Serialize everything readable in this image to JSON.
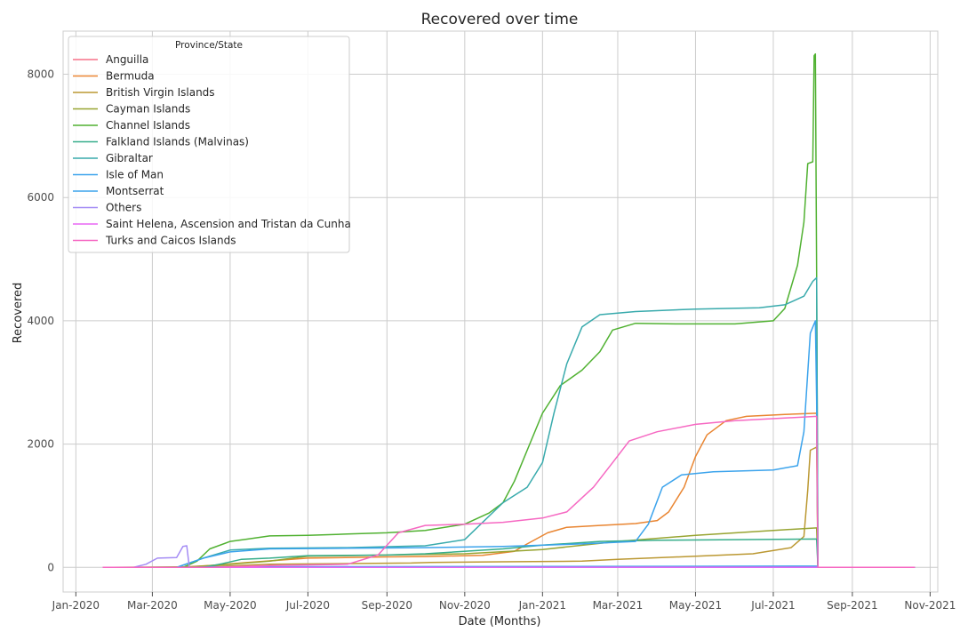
{
  "chart_data": {
    "type": "line",
    "title": "Recovered over time",
    "xlabel": "Date (Months)",
    "ylabel": "Recovered",
    "x_ticks": [
      "Jan-2020",
      "Mar-2020",
      "May-2020",
      "Jul-2020",
      "Sep-2020",
      "Nov-2020",
      "Jan-2021",
      "Mar-2021",
      "May-2021",
      "Jul-2021",
      "Sep-2021",
      "Nov-2021"
    ],
    "y_ticks": [
      0,
      2000,
      4000,
      6000,
      8000
    ],
    "xlim": [
      "2019-12-22",
      "2021-11-07"
    ],
    "ylim": [
      -400,
      8700
    ],
    "grid": true,
    "legend": {
      "title": "Province/State",
      "position": "top-left"
    },
    "series": [
      {
        "name": "Anguilla",
        "color": "#f77189",
        "points": [
          [
            "2020-01-22",
            0
          ],
          [
            "2021-08-04",
            3
          ],
          [
            "2021-08-05",
            0
          ],
          [
            "2021-10-20",
            0
          ]
        ]
      },
      {
        "name": "Bermuda",
        "color": "#e98531",
        "points": [
          [
            "2020-01-22",
            0
          ],
          [
            "2020-03-20",
            0
          ],
          [
            "2020-04-15",
            30
          ],
          [
            "2020-05-15",
            80
          ],
          [
            "2020-07-01",
            150
          ],
          [
            "2020-09-01",
            170
          ],
          [
            "2020-10-01",
            175
          ],
          [
            "2020-11-15",
            195
          ],
          [
            "2020-12-10",
            260
          ],
          [
            "2020-12-20",
            380
          ],
          [
            "2021-01-05",
            560
          ],
          [
            "2021-01-20",
            650
          ],
          [
            "2021-02-15",
            680
          ],
          [
            "2021-03-15",
            710
          ],
          [
            "2021-04-01",
            760
          ],
          [
            "2021-04-10",
            900
          ],
          [
            "2021-04-22",
            1300
          ],
          [
            "2021-05-01",
            1800
          ],
          [
            "2021-05-10",
            2150
          ],
          [
            "2021-05-25",
            2380
          ],
          [
            "2021-06-10",
            2450
          ],
          [
            "2021-07-10",
            2480
          ],
          [
            "2021-08-04",
            2500
          ],
          [
            "2021-08-05",
            0
          ],
          [
            "2021-10-20",
            0
          ]
        ]
      },
      {
        "name": "British Virgin Islands",
        "color": "#bb9832",
        "points": [
          [
            "2020-01-22",
            0
          ],
          [
            "2020-04-01",
            0
          ],
          [
            "2020-06-01",
            50
          ],
          [
            "2020-09-20",
            70
          ],
          [
            "2020-10-05",
            80
          ],
          [
            "2020-12-01",
            90
          ],
          [
            "2021-02-01",
            100
          ],
          [
            "2021-03-01",
            130
          ],
          [
            "2021-05-01",
            180
          ],
          [
            "2021-06-15",
            220
          ],
          [
            "2021-07-15",
            320
          ],
          [
            "2021-07-25",
            500
          ],
          [
            "2021-07-28",
            1250
          ],
          [
            "2021-07-30",
            1900
          ],
          [
            "2021-08-04",
            1950
          ],
          [
            "2021-08-05",
            0
          ],
          [
            "2021-10-20",
            0
          ]
        ]
      },
      {
        "name": "Cayman Islands",
        "color": "#97a431",
        "points": [
          [
            "2020-01-22",
            0
          ],
          [
            "2020-04-01",
            10
          ],
          [
            "2020-05-01",
            50
          ],
          [
            "2020-06-01",
            100
          ],
          [
            "2020-07-01",
            180
          ],
          [
            "2020-09-01",
            200
          ],
          [
            "2020-11-01",
            220
          ],
          [
            "2021-01-01",
            290
          ],
          [
            "2021-03-01",
            420
          ],
          [
            "2021-05-01",
            520
          ],
          [
            "2021-07-01",
            600
          ],
          [
            "2021-08-04",
            640
          ],
          [
            "2021-08-05",
            0
          ],
          [
            "2021-10-20",
            0
          ]
        ]
      },
      {
        "name": "Channel Islands",
        "color": "#50b131",
        "points": [
          [
            "2020-01-22",
            0
          ],
          [
            "2020-03-25",
            0
          ],
          [
            "2020-04-05",
            100
          ],
          [
            "2020-04-15",
            300
          ],
          [
            "2020-05-01",
            420
          ],
          [
            "2020-05-15",
            460
          ],
          [
            "2020-06-01",
            510
          ],
          [
            "2020-07-01",
            520
          ],
          [
            "2020-08-01",
            540
          ],
          [
            "2020-09-01",
            560
          ],
          [
            "2020-10-01",
            600
          ],
          [
            "2020-11-01",
            700
          ],
          [
            "2020-11-20",
            880
          ],
          [
            "2020-12-01",
            1050
          ],
          [
            "2020-12-10",
            1400
          ],
          [
            "2020-12-20",
            1900
          ],
          [
            "2021-01-01",
            2500
          ],
          [
            "2021-01-15",
            2950
          ],
          [
            "2021-02-01",
            3200
          ],
          [
            "2021-02-15",
            3500
          ],
          [
            "2021-02-25",
            3850
          ],
          [
            "2021-03-15",
            3960
          ],
          [
            "2021-04-15",
            3950
          ],
          [
            "2021-06-01",
            3950
          ],
          [
            "2021-07-01",
            4000
          ],
          [
            "2021-07-10",
            4200
          ],
          [
            "2021-07-20",
            4900
          ],
          [
            "2021-07-25",
            5600
          ],
          [
            "2021-07-28",
            6550
          ],
          [
            "2021-08-01",
            6580
          ],
          [
            "2021-08-02",
            8300
          ],
          [
            "2021-08-03",
            8330
          ],
          [
            "2021-08-04",
            4800
          ],
          [
            "2021-08-05",
            0
          ],
          [
            "2021-10-20",
            0
          ]
        ]
      },
      {
        "name": "Falkland Islands (Malvinas)",
        "color": "#36ad8a",
        "points": [
          [
            "2020-01-22",
            0
          ],
          [
            "2020-04-10",
            0
          ],
          [
            "2020-04-25",
            60
          ],
          [
            "2020-05-10",
            130
          ],
          [
            "2020-06-01",
            150
          ],
          [
            "2020-07-01",
            190
          ],
          [
            "2020-09-01",
            200
          ],
          [
            "2020-10-01",
            220
          ],
          [
            "2020-12-01",
            300
          ],
          [
            "2021-01-01",
            360
          ],
          [
            "2021-02-15",
            420
          ],
          [
            "2021-04-01",
            440
          ],
          [
            "2021-06-01",
            450
          ],
          [
            "2021-08-04",
            460
          ],
          [
            "2021-08-05",
            0
          ],
          [
            "2021-10-20",
            0
          ]
        ]
      },
      {
        "name": "Gibraltar",
        "color": "#38aaac",
        "points": [
          [
            "2020-01-22",
            0
          ],
          [
            "2020-03-20",
            0
          ],
          [
            "2020-04-10",
            150
          ],
          [
            "2020-05-01",
            280
          ],
          [
            "2020-06-01",
            310
          ],
          [
            "2020-08-01",
            320
          ],
          [
            "2020-10-01",
            350
          ],
          [
            "2020-11-01",
            450
          ],
          [
            "2020-12-01",
            1050
          ],
          [
            "2020-12-20",
            1300
          ],
          [
            "2021-01-01",
            1700
          ],
          [
            "2021-01-10",
            2500
          ],
          [
            "2021-01-20",
            3300
          ],
          [
            "2021-02-01",
            3900
          ],
          [
            "2021-02-15",
            4100
          ],
          [
            "2021-03-15",
            4150
          ],
          [
            "2021-05-01",
            4190
          ],
          [
            "2021-06-20",
            4210
          ],
          [
            "2021-07-10",
            4260
          ],
          [
            "2021-07-25",
            4400
          ],
          [
            "2021-08-01",
            4640
          ],
          [
            "2021-08-04",
            4700
          ],
          [
            "2021-08-05",
            0
          ],
          [
            "2021-10-20",
            0
          ]
        ]
      },
      {
        "name": "Isle of Man",
        "color": "#3ba3ec",
        "points": [
          [
            "2020-01-22",
            0
          ],
          [
            "2020-03-20",
            0
          ],
          [
            "2020-04-10",
            150
          ],
          [
            "2020-05-01",
            250
          ],
          [
            "2020-06-01",
            300
          ],
          [
            "2020-08-01",
            310
          ],
          [
            "2020-10-01",
            320
          ],
          [
            "2020-12-01",
            340
          ],
          [
            "2021-02-01",
            380
          ],
          [
            "2021-03-15",
            420
          ],
          [
            "2021-03-25",
            700
          ],
          [
            "2021-04-05",
            1300
          ],
          [
            "2021-04-20",
            1500
          ],
          [
            "2021-05-15",
            1550
          ],
          [
            "2021-07-01",
            1580
          ],
          [
            "2021-07-20",
            1650
          ],
          [
            "2021-07-25",
            2200
          ],
          [
            "2021-07-30",
            3800
          ],
          [
            "2021-08-03",
            4000
          ],
          [
            "2021-08-04",
            2700
          ],
          [
            "2021-08-05",
            0
          ],
          [
            "2021-10-20",
            0
          ]
        ]
      },
      {
        "name": "Montserrat",
        "color": "#3ba3ec",
        "points": [
          [
            "2020-01-22",
            0
          ],
          [
            "2020-04-01",
            0
          ],
          [
            "2020-05-01",
            10
          ],
          [
            "2021-08-04",
            20
          ],
          [
            "2021-08-05",
            0
          ],
          [
            "2021-10-20",
            0
          ]
        ]
      },
      {
        "name": "Others",
        "color": "#a48cf4",
        "points": [
          [
            "2020-01-22",
            0
          ],
          [
            "2020-02-15",
            0
          ],
          [
            "2020-02-25",
            50
          ],
          [
            "2020-03-05",
            150
          ],
          [
            "2020-03-20",
            160
          ],
          [
            "2020-03-25",
            340
          ],
          [
            "2020-03-28",
            350
          ],
          [
            "2020-03-30",
            0
          ],
          [
            "2021-10-20",
            0
          ]
        ]
      },
      {
        "name": "Saint Helena, Ascension and Tristan da Cunha",
        "color": "#e866f4",
        "points": [
          [
            "2020-01-22",
            0
          ],
          [
            "2021-08-04",
            2
          ],
          [
            "2021-08-05",
            0
          ],
          [
            "2021-10-20",
            0
          ]
        ]
      },
      {
        "name": "Turks and Caicos Islands",
        "color": "#f668c2",
        "points": [
          [
            "2020-01-22",
            0
          ],
          [
            "2020-04-15",
            0
          ],
          [
            "2020-06-01",
            30
          ],
          [
            "2020-08-01",
            50
          ],
          [
            "2020-08-25",
            200
          ],
          [
            "2020-09-10",
            560
          ],
          [
            "2020-10-01",
            680
          ],
          [
            "2020-11-01",
            700
          ],
          [
            "2020-12-01",
            730
          ],
          [
            "2021-01-01",
            800
          ],
          [
            "2021-01-20",
            900
          ],
          [
            "2021-02-10",
            1300
          ],
          [
            "2021-02-25",
            1700
          ],
          [
            "2021-03-10",
            2050
          ],
          [
            "2021-04-01",
            2200
          ],
          [
            "2021-05-01",
            2320
          ],
          [
            "2021-06-01",
            2380
          ],
          [
            "2021-08-04",
            2450
          ],
          [
            "2021-08-05",
            0
          ],
          [
            "2021-10-20",
            0
          ]
        ]
      }
    ]
  }
}
